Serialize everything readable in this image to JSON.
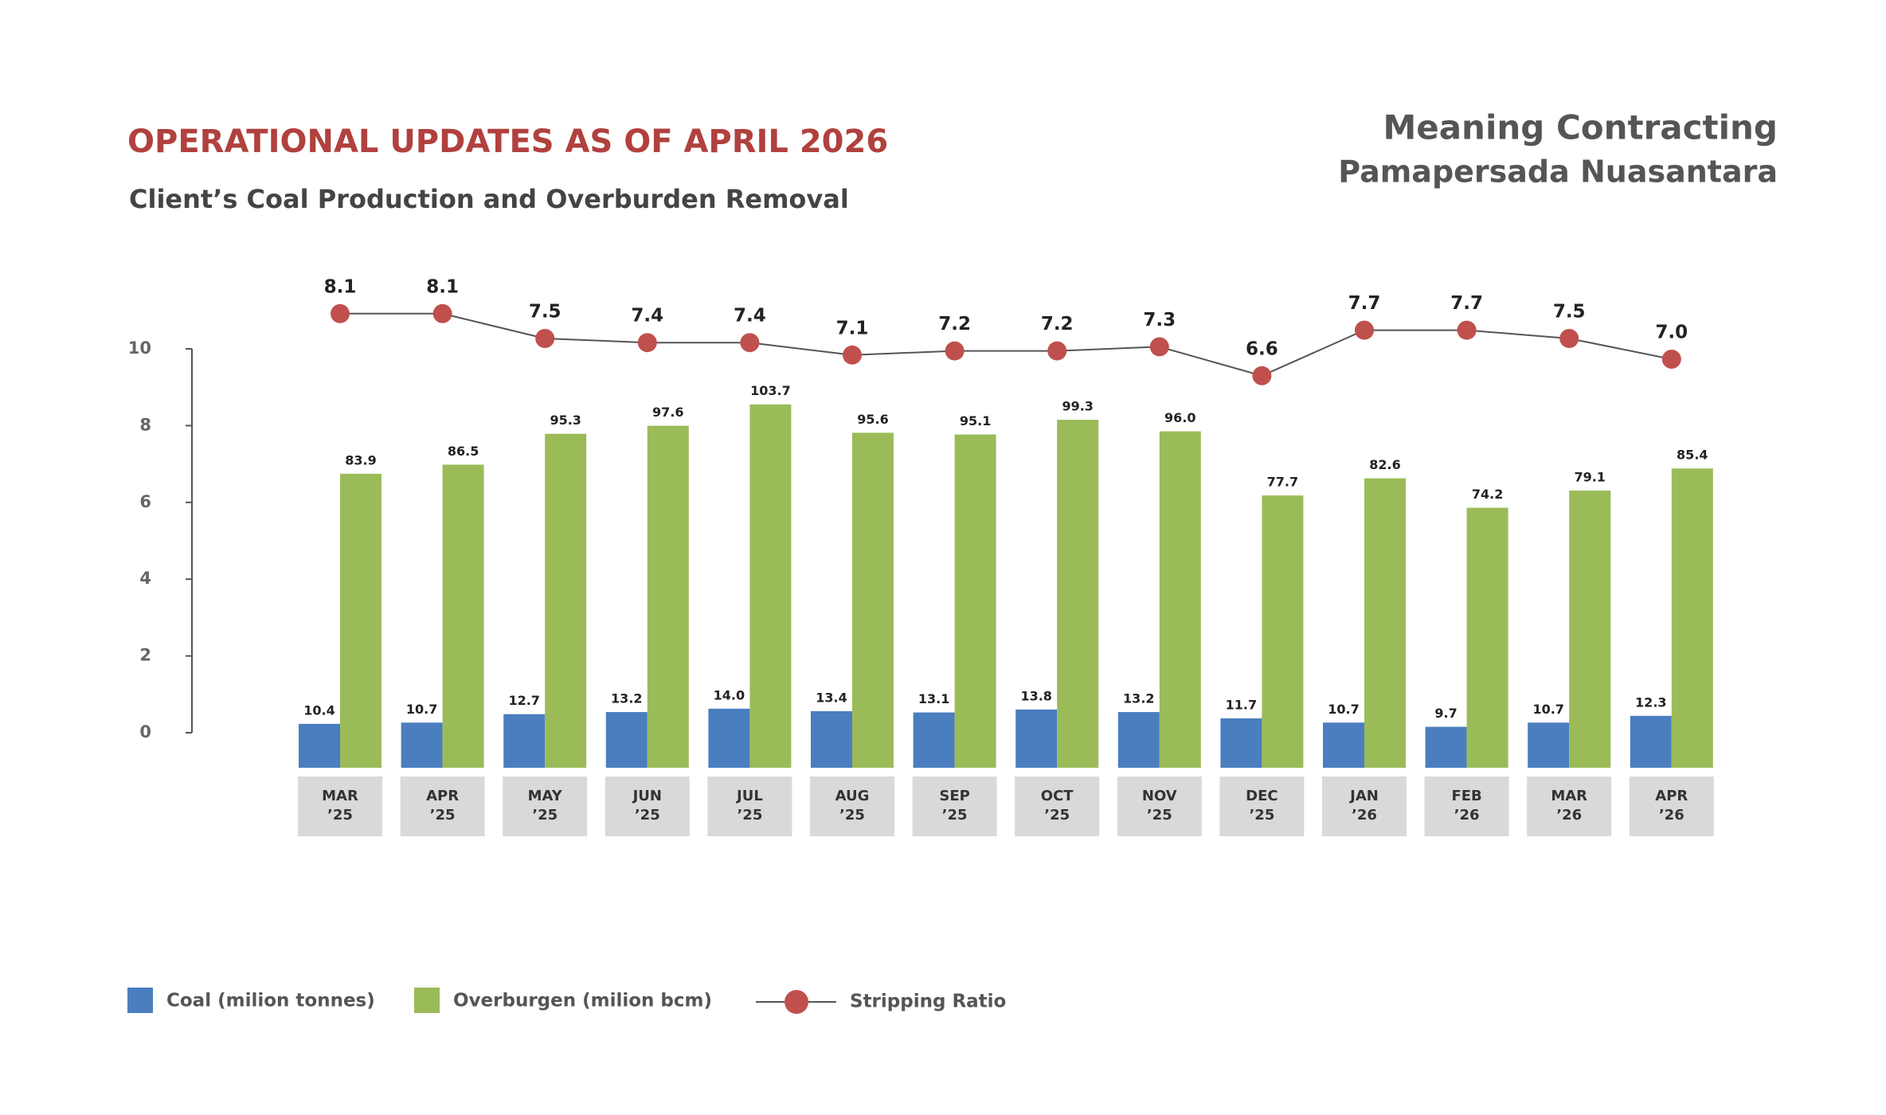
{
  "header": {
    "company": "Meaning Contracting",
    "division": "Pamapersada Nuasantara"
  },
  "chart_data": {
    "type": "bar-line",
    "title": "OPERATIONAL UPDATES AS OF APRIL 2026",
    "subtitle": "Client’s Coal Production and Overburden Removal",
    "categories": [
      "MAR\n’25",
      "APR\n’25",
      "MAY\n’25",
      "JUN\n’25",
      "JUL\n’25",
      "AUG\n’25",
      "SEP\n’25",
      "OCT\n’25",
      "NOV\n’25",
      "DEC\n’25",
      "JAN\n’26",
      "FEB\n’26",
      "MAR\n’26",
      "APR\n’26"
    ],
    "ylim": [
      0,
      10
    ],
    "yticks": [
      0,
      2,
      4,
      6,
      8,
      10
    ],
    "series": [
      {
        "name": "Coal (milion tonnes)",
        "color": "#4a7ebf",
        "kind": "bar",
        "values": [
          10.4,
          10.7,
          12.7,
          13.2,
          14.0,
          13.4,
          13.1,
          13.8,
          13.2,
          11.7,
          10.7,
          9.7,
          10.7,
          12.3
        ],
        "value_labels": [
          "10.4",
          "10.7",
          "12.7",
          "13.2",
          "14.0",
          "13.4",
          "13.1",
          "13.8",
          "13.2",
          "11.7",
          "10.7",
          "9.7",
          "10.7",
          "12.3"
        ]
      },
      {
        "name": "Overburgen (milion bcm)",
        "color": "#9bbb59",
        "kind": "bar",
        "values": [
          83.9,
          86.5,
          95.3,
          97.6,
          103.7,
          95.6,
          95.1,
          99.3,
          96.0,
          77.7,
          82.6,
          74.2,
          79.1,
          85.4
        ],
        "value_labels": [
          "83.9",
          "86.5",
          "95.3",
          "97.6",
          "103.7",
          "95.6",
          "95.1",
          "99.3",
          "96.0",
          "77.7",
          "82.6",
          "74.2",
          "79.1",
          "85.4"
        ]
      },
      {
        "name": "Stripping Ratio",
        "color": "#c0504d",
        "kind": "line",
        "values": [
          8.1,
          8.1,
          7.5,
          7.4,
          7.4,
          7.1,
          7.2,
          7.2,
          7.3,
          6.6,
          7.7,
          7.7,
          7.5,
          7.0
        ],
        "value_labels": [
          "8.1",
          "8.1",
          "7.5",
          "7.4",
          "7.4",
          "7.1",
          "7.2",
          "7.2",
          "7.3",
          "6.6",
          "7.7",
          "7.7",
          "7.5",
          "7.0"
        ]
      }
    ]
  }
}
